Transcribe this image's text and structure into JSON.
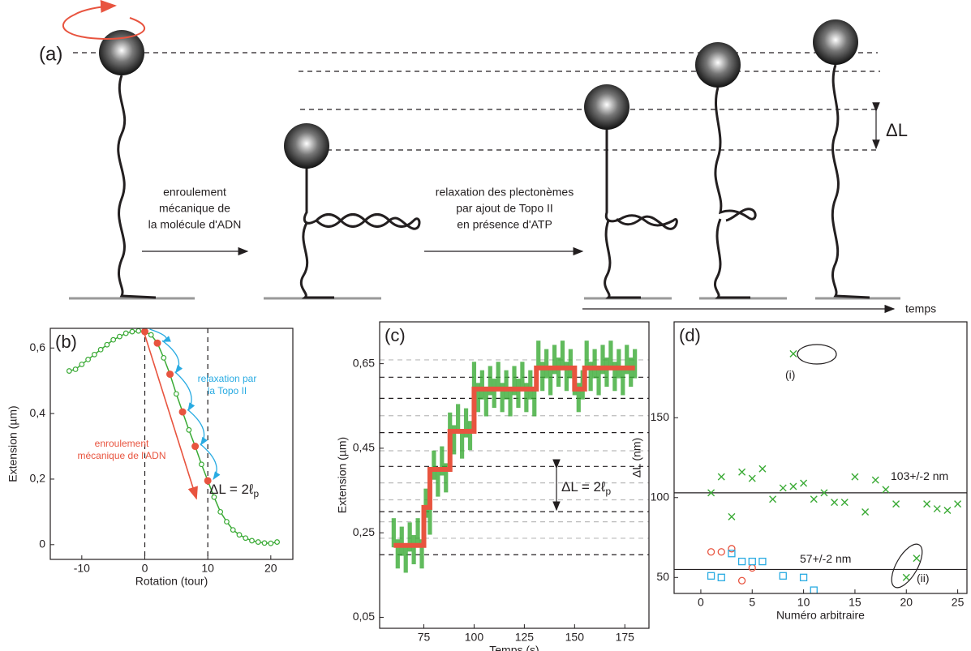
{
  "diagram": {
    "label": "(a)",
    "step1": [
      "enroulement",
      "mécanique de",
      "la molécule d'ADN"
    ],
    "step2": [
      "relaxation des plectonèmes",
      "par ajout de Topo II",
      "en présence d'ATP"
    ],
    "delta": "ΔL",
    "time": "temps"
  },
  "chart_data": [
    {
      "type": "line",
      "panel_label": "(b)",
      "x_label": "Rotation (tour)",
      "y_label": "Extension (µm)",
      "xlim": [
        -15,
        23.5
      ],
      "ylim": [
        -0.045,
        0.66
      ],
      "xticks": [
        -10,
        0,
        10,
        20
      ],
      "yticks": [
        0,
        {
          "value": 0.2,
          "label": "0,2"
        },
        {
          "value": 0.4,
          "label": "0,4"
        },
        {
          "value": 0.6,
          "label": "0,6"
        }
      ],
      "vlines": [
        0,
        10
      ],
      "series": [
        {
          "color": "#3aaa35",
          "style": "line-markers",
          "x": [
            -12,
            -11,
            -10,
            -9,
            -8,
            -7,
            -6,
            -5,
            -4,
            -3,
            -2,
            -1,
            0,
            1,
            2,
            3,
            4,
            5,
            6,
            7,
            8,
            9,
            10,
            11,
            12,
            13,
            14,
            15,
            16,
            17,
            18,
            19,
            20,
            21
          ],
          "values": [
            0.53,
            0.535,
            0.55,
            0.565,
            0.58,
            0.595,
            0.61,
            0.625,
            0.635,
            0.645,
            0.65,
            0.652,
            0.65,
            0.64,
            0.615,
            0.57,
            0.52,
            0.46,
            0.405,
            0.35,
            0.3,
            0.245,
            0.195,
            0.145,
            0.1,
            0.07,
            0.045,
            0.03,
            0.02,
            0.012,
            0.008,
            0.005,
            0.004,
            0.008
          ]
        },
        {
          "color": "#e8543f",
          "style": "markers",
          "x": [
            0,
            2,
            4,
            6,
            8,
            10
          ],
          "values": [
            0.65,
            0.615,
            0.52,
            0.405,
            0.3,
            0.195
          ]
        }
      ],
      "annotations": [
        {
          "lines": [
            "relaxation par",
            "la Topo II"
          ],
          "color": "#29abe2"
        },
        {
          "lines": [
            "enroulement",
            "mécanique de l'ADN"
          ],
          "color": "#e8543f"
        },
        {
          "lines": [
            "ΔL = 2ℓ"
          ],
          "sub": "p",
          "color": "#231f20"
        }
      ]
    },
    {
      "type": "line",
      "panel_label": "(c)",
      "x_label": "Temps (s)",
      "y_label": "Extension (µm)",
      "xlim": [
        53,
        187
      ],
      "ylim": [
        0.024,
        0.749
      ],
      "xticks": [
        75,
        100,
        125,
        150,
        175
      ],
      "yticks": [
        {
          "value": 0.05,
          "label": "0,05"
        },
        {
          "value": 0.25,
          "label": "0,25"
        },
        {
          "value": 0.45,
          "label": "0,45"
        },
        {
          "value": 0.65,
          "label": "0,65"
        }
      ],
      "hlines_dark": [
        0.198,
        0.3,
        0.407,
        0.487,
        0.568,
        0.618
      ],
      "hlines_light": [
        0.237,
        0.276,
        0.328,
        0.368,
        0.444,
        0.527,
        0.659
      ],
      "series": [
        {
          "color": "#3aaa35",
          "style": "noise",
          "x": [
            60,
            62,
            64,
            66,
            68,
            70,
            72,
            74,
            76,
            78,
            80,
            82,
            84,
            86,
            88,
            90,
            92,
            94,
            96,
            98,
            100,
            102,
            104,
            106,
            108,
            110,
            112,
            114,
            116,
            118,
            120,
            122,
            124,
            126,
            128,
            130,
            132,
            134,
            136,
            138,
            140,
            142,
            144,
            146,
            148,
            150,
            152,
            154,
            156,
            158,
            160,
            162,
            164,
            166,
            168,
            170,
            172,
            174,
            176,
            178,
            180
          ],
          "values": [
            0.25,
            0.2,
            0.23,
            0.19,
            0.24,
            0.21,
            0.25,
            0.2,
            0.32,
            0.28,
            0.41,
            0.37,
            0.42,
            0.38,
            0.5,
            0.47,
            0.52,
            0.46,
            0.51,
            0.48,
            0.62,
            0.57,
            0.6,
            0.56,
            0.61,
            0.58,
            0.62,
            0.57,
            0.6,
            0.56,
            0.61,
            0.58,
            0.62,
            0.57,
            0.6,
            0.56,
            0.67,
            0.62,
            0.65,
            0.61,
            0.66,
            0.63,
            0.67,
            0.62,
            0.65,
            0.61,
            0.57,
            0.6,
            0.67,
            0.62,
            0.65,
            0.61,
            0.66,
            0.63,
            0.67,
            0.62,
            0.65,
            0.61,
            0.66,
            0.63,
            0.65
          ]
        },
        {
          "color": "#e8543f",
          "style": "line",
          "x": [
            60,
            75,
            75,
            78,
            78,
            88,
            88,
            100,
            100,
            131,
            131,
            150,
            150,
            155,
            155,
            180
          ],
          "values": [
            0.22,
            0.22,
            0.31,
            0.31,
            0.4,
            0.4,
            0.49,
            0.49,
            0.59,
            0.59,
            0.64,
            0.64,
            0.59,
            0.59,
            0.64,
            0.64
          ]
        }
      ],
      "annotations": [
        {
          "lines": [
            "ΔL = 2ℓ"
          ],
          "sub": "p",
          "color": "#231f20"
        }
      ]
    },
    {
      "type": "scatter",
      "panel_label": "(d)",
      "x_label": "Numéro arbitraire",
      "y_label": "ΔL (nm)",
      "xlim": [
        -2.6,
        25.9
      ],
      "ylim": [
        40,
        210
      ],
      "xticks": [
        0,
        5,
        10,
        15,
        20,
        25
      ],
      "yticks": [
        50,
        100,
        150
      ],
      "hlines": [
        103,
        55
      ],
      "series": [
        {
          "color": "#3aaa35",
          "marker": "x",
          "x": [
            1,
            2,
            3,
            4,
            5,
            6,
            7,
            8,
            9,
            10,
            11,
            12,
            13,
            14,
            15,
            16,
            17,
            18,
            19,
            22,
            23,
            24,
            25,
            9,
            20,
            21
          ],
          "values": [
            103,
            113,
            88,
            116,
            112,
            118,
            99,
            106,
            107,
            109,
            99,
            103,
            97,
            97,
            113,
            91,
            111,
            105,
            96,
            96,
            93,
            92,
            96,
            190,
            50,
            62
          ]
        },
        {
          "color": "#e8543f",
          "marker": "circle",
          "x": [
            1,
            2,
            3,
            4,
            5
          ],
          "values": [
            66,
            66,
            68,
            48,
            56
          ]
        },
        {
          "color": "#29abe2",
          "marker": "square",
          "x": [
            1,
            2,
            3,
            4,
            5,
            6,
            8,
            10,
            11
          ],
          "values": [
            51,
            50,
            65,
            60,
            60,
            60,
            51,
            50,
            42
          ]
        }
      ],
      "annotations": [
        {
          "lines": [
            "103+/-2 nm"
          ]
        },
        {
          "lines": [
            "57+/-2 nm"
          ]
        },
        {
          "lines": [
            "(i)"
          ]
        },
        {
          "lines": [
            "(ii)"
          ]
        }
      ]
    }
  ]
}
